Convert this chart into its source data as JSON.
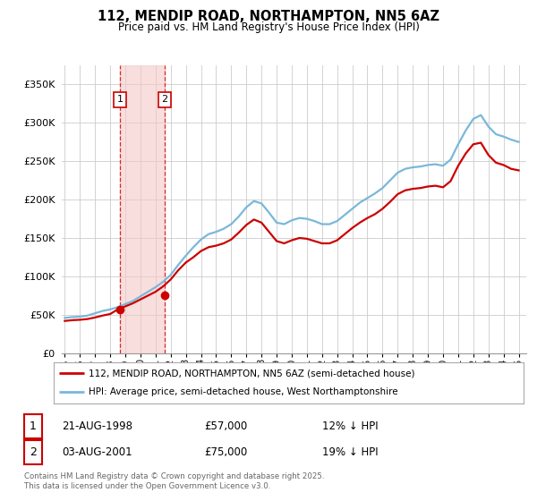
{
  "title": "112, MENDIP ROAD, NORTHAMPTON, NN5 6AZ",
  "subtitle": "Price paid vs. HM Land Registry's House Price Index (HPI)",
  "background_color": "#ffffff",
  "plot_bg_color": "#ffffff",
  "grid_color": "#cccccc",
  "ylim": [
    0,
    375000
  ],
  "yticks": [
    0,
    50000,
    100000,
    150000,
    200000,
    250000,
    300000,
    350000
  ],
  "ytick_labels": [
    "£0",
    "£50K",
    "£100K",
    "£150K",
    "£200K",
    "£250K",
    "£300K",
    "£350K"
  ],
  "hpi_color": "#7ab8d9",
  "price_color": "#cc0000",
  "annotation_box_color": "#cc0000",
  "purchase1": {
    "label": "1",
    "date": "21-AUG-1998",
    "price": 57000,
    "hpi_pct": "12% ↓ HPI",
    "x": 1998.65
  },
  "purchase2": {
    "label": "2",
    "date": "03-AUG-2001",
    "price": 75000,
    "hpi_pct": "19% ↓ HPI",
    "x": 2001.6
  },
  "legend_line1": "112, MENDIP ROAD, NORTHAMPTON, NN5 6AZ (semi-detached house)",
  "legend_line2": "HPI: Average price, semi-detached house, West Northamptonshire",
  "footer": "Contains HM Land Registry data © Crown copyright and database right 2025.\nThis data is licensed under the Open Government Licence v3.0.",
  "hpi_x": [
    1995.0,
    1995.5,
    1996.0,
    1996.5,
    1997.0,
    1997.5,
    1998.0,
    1998.5,
    1999.0,
    1999.5,
    2000.0,
    2000.5,
    2001.0,
    2001.5,
    2002.0,
    2002.5,
    2003.0,
    2003.5,
    2004.0,
    2004.5,
    2005.0,
    2005.5,
    2006.0,
    2006.5,
    2007.0,
    2007.5,
    2008.0,
    2008.5,
    2009.0,
    2009.5,
    2010.0,
    2010.5,
    2011.0,
    2011.5,
    2012.0,
    2012.5,
    2013.0,
    2013.5,
    2014.0,
    2014.5,
    2015.0,
    2015.5,
    2016.0,
    2016.5,
    2017.0,
    2017.5,
    2018.0,
    2018.5,
    2019.0,
    2019.5,
    2020.0,
    2020.5,
    2021.0,
    2021.5,
    2022.0,
    2022.5,
    2023.0,
    2023.5,
    2024.0,
    2024.5,
    2025.0
  ],
  "hpi_y": [
    46000,
    47000,
    47500,
    49000,
    52000,
    55000,
    57000,
    60000,
    64000,
    68000,
    74000,
    80000,
    86000,
    93000,
    102000,
    115000,
    127000,
    138000,
    148000,
    155000,
    158000,
    162000,
    168000,
    178000,
    190000,
    198000,
    195000,
    183000,
    170000,
    168000,
    173000,
    176000,
    175000,
    172000,
    168000,
    168000,
    172000,
    180000,
    188000,
    196000,
    202000,
    208000,
    215000,
    225000,
    235000,
    240000,
    242000,
    243000,
    245000,
    246000,
    244000,
    252000,
    272000,
    290000,
    305000,
    310000,
    295000,
    285000,
    282000,
    278000,
    275000
  ],
  "price_x": [
    1995.0,
    1995.5,
    1996.0,
    1996.5,
    1997.0,
    1997.5,
    1998.0,
    1998.5,
    1999.0,
    1999.5,
    2000.0,
    2000.5,
    2001.0,
    2001.5,
    2002.0,
    2002.5,
    2003.0,
    2003.5,
    2004.0,
    2004.5,
    2005.0,
    2005.5,
    2006.0,
    2006.5,
    2007.0,
    2007.5,
    2008.0,
    2008.5,
    2009.0,
    2009.5,
    2010.0,
    2010.5,
    2011.0,
    2011.5,
    2012.0,
    2012.5,
    2013.0,
    2013.5,
    2014.0,
    2014.5,
    2015.0,
    2015.5,
    2016.0,
    2016.5,
    2017.0,
    2017.5,
    2018.0,
    2018.5,
    2019.0,
    2019.5,
    2020.0,
    2020.5,
    2021.0,
    2021.5,
    2022.0,
    2022.5,
    2023.0,
    2023.5,
    2024.0,
    2024.5,
    2025.0
  ],
  "price_y": [
    42000,
    43000,
    43500,
    44500,
    46500,
    49000,
    51000,
    57000,
    61000,
    65000,
    70000,
    75000,
    80000,
    87000,
    96000,
    108000,
    118000,
    125000,
    133000,
    138000,
    140000,
    143000,
    148000,
    157000,
    167000,
    174000,
    170000,
    158000,
    146000,
    143000,
    147000,
    150000,
    149000,
    146000,
    143000,
    143000,
    147000,
    155000,
    163000,
    170000,
    176000,
    181000,
    188000,
    197000,
    207000,
    212000,
    214000,
    215000,
    217000,
    218000,
    216000,
    224000,
    244000,
    260000,
    272000,
    274000,
    258000,
    248000,
    245000,
    240000,
    238000
  ],
  "xlim": [
    1994.8,
    2025.5
  ],
  "xticks": [
    1995,
    1996,
    1997,
    1998,
    1999,
    2000,
    2001,
    2002,
    2003,
    2004,
    2005,
    2006,
    2007,
    2008,
    2009,
    2010,
    2011,
    2012,
    2013,
    2014,
    2015,
    2016,
    2017,
    2018,
    2019,
    2020,
    2021,
    2022,
    2023,
    2024,
    2025
  ]
}
